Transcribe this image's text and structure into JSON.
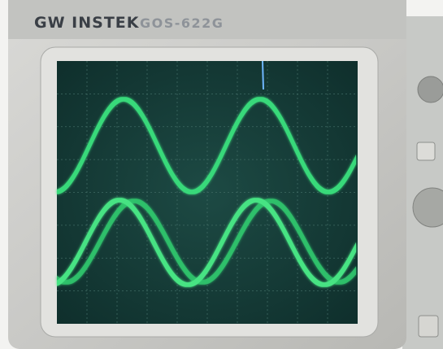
{
  "brand": "GW INSTEK",
  "model": "GOS-622G"
}
